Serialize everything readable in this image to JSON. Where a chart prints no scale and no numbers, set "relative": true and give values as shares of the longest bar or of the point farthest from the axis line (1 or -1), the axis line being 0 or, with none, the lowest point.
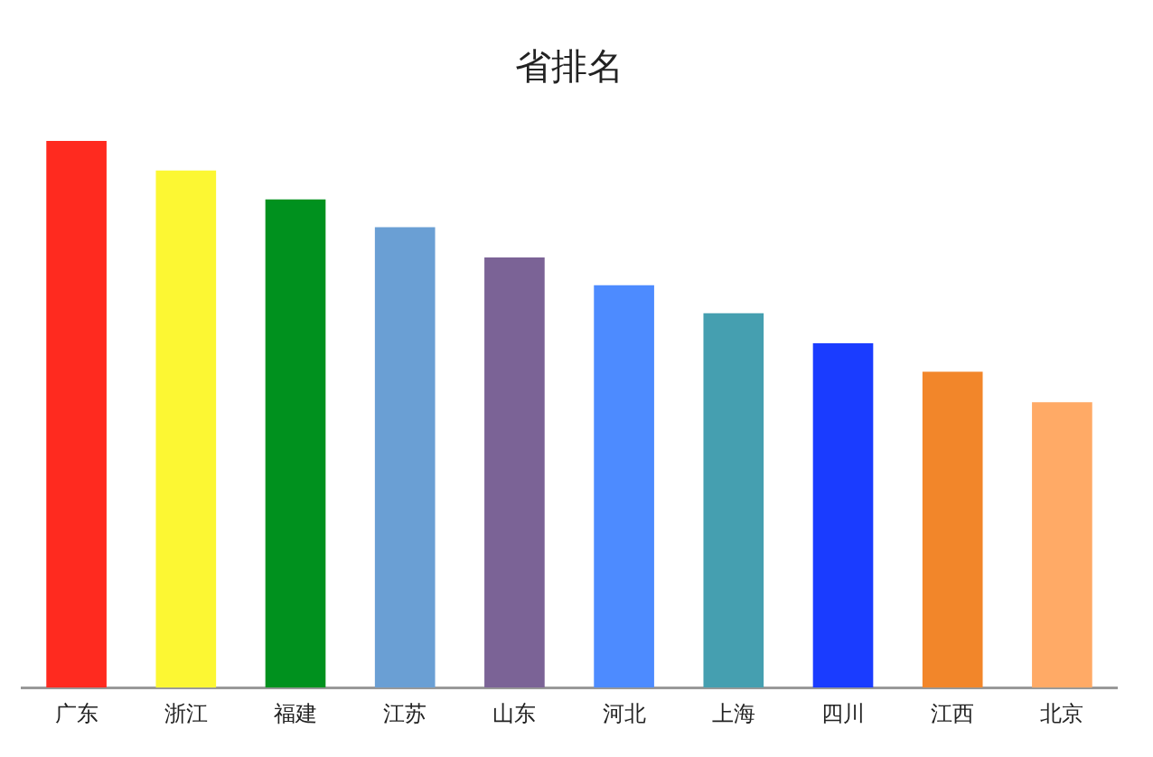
{
  "chart_data": {
    "type": "bar",
    "title": "省排名",
    "relative": true,
    "categories": [
      "广东",
      "浙江",
      "福建",
      "江苏",
      "山东",
      "河北",
      "上海",
      "四川",
      "江西",
      "北京"
    ],
    "values": [
      1,
      0.946,
      0.893,
      0.842,
      0.787,
      0.736,
      0.685,
      0.63,
      0.578,
      0.522
    ],
    "colors": [
      "#ff2a1f",
      "#fcf733",
      "#00911e",
      "#6a9fd4",
      "#7b6396",
      "#4d8bff",
      "#459fb0",
      "#1a3cff",
      "#f2862a",
      "#ffaa66"
    ],
    "grid": false,
    "legend": false
  }
}
